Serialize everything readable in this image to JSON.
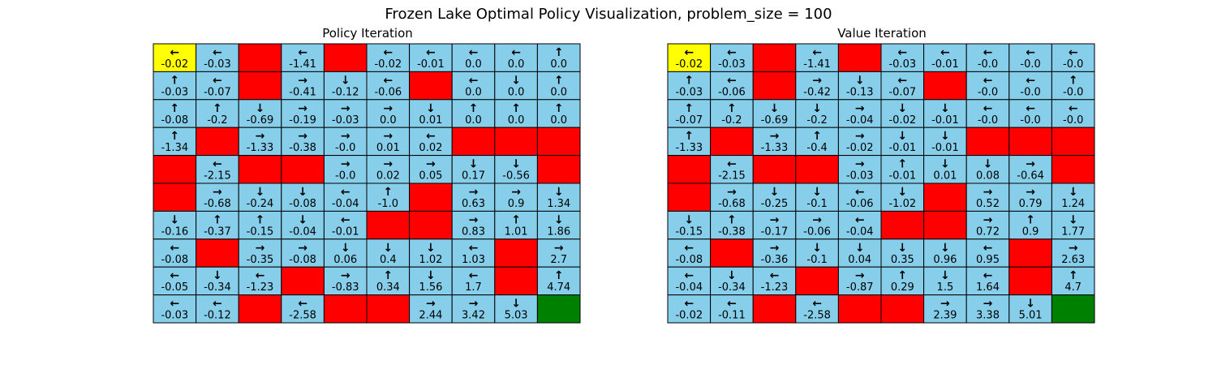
{
  "title": "Frozen Lake Optimal Policy Visualization, problem_size = 100",
  "colors": {
    "start": "#ffff00",
    "hole": "#ff0000",
    "goal": "#008000",
    "frozen": "#87ceeb",
    "border": "#000000"
  },
  "chart_data": [
    {
      "type": "heatmap",
      "title": "Policy Iteration",
      "rows": 10,
      "cols": 10,
      "cell_types": [
        [
          "S",
          "F",
          "H",
          "F",
          "H",
          "F",
          "F",
          "F",
          "F",
          "F"
        ],
        [
          "F",
          "F",
          "H",
          "F",
          "F",
          "F",
          "H",
          "F",
          "F",
          "F"
        ],
        [
          "F",
          "F",
          "F",
          "F",
          "F",
          "F",
          "F",
          "F",
          "F",
          "F"
        ],
        [
          "F",
          "H",
          "F",
          "F",
          "F",
          "F",
          "F",
          "H",
          "H",
          "H"
        ],
        [
          "H",
          "F",
          "H",
          "H",
          "F",
          "F",
          "F",
          "F",
          "F",
          "H"
        ],
        [
          "H",
          "F",
          "F",
          "F",
          "F",
          "F",
          "H",
          "F",
          "F",
          "F"
        ],
        [
          "F",
          "F",
          "F",
          "F",
          "F",
          "H",
          "H",
          "F",
          "F",
          "F"
        ],
        [
          "F",
          "H",
          "F",
          "F",
          "F",
          "F",
          "F",
          "F",
          "H",
          "F"
        ],
        [
          "F",
          "F",
          "F",
          "H",
          "F",
          "F",
          "F",
          "F",
          "H",
          "F"
        ],
        [
          "F",
          "F",
          "H",
          "F",
          "H",
          "H",
          "F",
          "F",
          "F",
          "G"
        ]
      ],
      "actions": [
        [
          "left",
          "left",
          "",
          "left",
          "",
          "left",
          "left",
          "left",
          "left",
          "up"
        ],
        [
          "up",
          "left",
          "",
          "right",
          "down",
          "left",
          "",
          "left",
          "down",
          "up"
        ],
        [
          "up",
          "up",
          "down",
          "right",
          "right",
          "right",
          "down",
          "up",
          "up",
          "up"
        ],
        [
          "up",
          "",
          "right",
          "right",
          "right",
          "right",
          "left",
          "",
          "",
          ""
        ],
        [
          "",
          "left",
          "",
          "",
          "right",
          "right",
          "right",
          "down",
          "down",
          ""
        ],
        [
          "",
          "right",
          "down",
          "down",
          "left",
          "up",
          "",
          "right",
          "right",
          "down"
        ],
        [
          "down",
          "up",
          "up",
          "down",
          "left",
          "",
          "",
          "right",
          "up",
          "down"
        ],
        [
          "left",
          "",
          "right",
          "right",
          "down",
          "down",
          "down",
          "left",
          "",
          "right"
        ],
        [
          "left",
          "down",
          "left",
          "",
          "right",
          "up",
          "down",
          "left",
          "",
          "up"
        ],
        [
          "left",
          "left",
          "",
          "left",
          "",
          "",
          "right",
          "right",
          "down",
          ""
        ]
      ],
      "values": [
        [
          "-0.02",
          "-0.03",
          "",
          "-1.41",
          "",
          "-0.02",
          "-0.01",
          "0.0",
          "0.0",
          "0.0"
        ],
        [
          "-0.03",
          "-0.07",
          "",
          "-0.41",
          "-0.12",
          "-0.06",
          "",
          "0.0",
          "0.0",
          "0.0"
        ],
        [
          "-0.08",
          "-0.2",
          "-0.69",
          "-0.19",
          "-0.03",
          "0.0",
          "0.01",
          "0.0",
          "0.0",
          "0.0"
        ],
        [
          "-1.34",
          "",
          "-1.33",
          "-0.38",
          "-0.0",
          "0.01",
          "0.02",
          "",
          "",
          ""
        ],
        [
          "",
          "-2.15",
          "",
          "",
          "-0.0",
          "0.02",
          "0.05",
          "0.17",
          "-0.56",
          ""
        ],
        [
          "",
          "-0.68",
          "-0.24",
          "-0.08",
          "-0.04",
          "-1.0",
          "",
          "0.63",
          "0.9",
          "1.34"
        ],
        [
          "-0.16",
          "-0.37",
          "-0.15",
          "-0.04",
          "-0.01",
          "",
          "",
          "0.83",
          "1.01",
          "1.86"
        ],
        [
          "-0.08",
          "",
          "-0.35",
          "-0.08",
          "0.06",
          "0.4",
          "1.02",
          "1.03",
          "",
          "2.7"
        ],
        [
          "-0.05",
          "-0.34",
          "-1.23",
          "",
          "-0.83",
          "0.34",
          "1.56",
          "1.7",
          "",
          "4.74"
        ],
        [
          "-0.03",
          "-0.12",
          "",
          "-2.58",
          "",
          "",
          "2.44",
          "3.42",
          "5.03",
          ""
        ]
      ]
    },
    {
      "type": "heatmap",
      "title": "Value Iteration",
      "rows": 10,
      "cols": 10,
      "cell_types": [
        [
          "S",
          "F",
          "H",
          "F",
          "H",
          "F",
          "F",
          "F",
          "F",
          "F"
        ],
        [
          "F",
          "F",
          "H",
          "F",
          "F",
          "F",
          "H",
          "F",
          "F",
          "F"
        ],
        [
          "F",
          "F",
          "F",
          "F",
          "F",
          "F",
          "F",
          "F",
          "F",
          "F"
        ],
        [
          "F",
          "H",
          "F",
          "F",
          "F",
          "F",
          "F",
          "H",
          "H",
          "H"
        ],
        [
          "H",
          "F",
          "H",
          "H",
          "F",
          "F",
          "F",
          "F",
          "F",
          "H"
        ],
        [
          "H",
          "F",
          "F",
          "F",
          "F",
          "F",
          "H",
          "F",
          "F",
          "F"
        ],
        [
          "F",
          "F",
          "F",
          "F",
          "F",
          "H",
          "H",
          "F",
          "F",
          "F"
        ],
        [
          "F",
          "H",
          "F",
          "F",
          "F",
          "F",
          "F",
          "F",
          "H",
          "F"
        ],
        [
          "F",
          "F",
          "F",
          "H",
          "F",
          "F",
          "F",
          "F",
          "H",
          "F"
        ],
        [
          "F",
          "F",
          "H",
          "F",
          "H",
          "H",
          "F",
          "F",
          "F",
          "G"
        ]
      ],
      "actions": [
        [
          "left",
          "left",
          "",
          "left",
          "",
          "left",
          "left",
          "left",
          "left",
          "left"
        ],
        [
          "up",
          "left",
          "",
          "right",
          "down",
          "left",
          "",
          "left",
          "left",
          "up"
        ],
        [
          "up",
          "up",
          "down",
          "down",
          "right",
          "down",
          "down",
          "left",
          "left",
          "left"
        ],
        [
          "up",
          "",
          "right",
          "up",
          "right",
          "down",
          "down",
          "",
          "",
          ""
        ],
        [
          "",
          "left",
          "",
          "",
          "right",
          "up",
          "down",
          "down",
          "right",
          ""
        ],
        [
          "",
          "right",
          "down",
          "down",
          "left",
          "down",
          "",
          "right",
          "right",
          "down"
        ],
        [
          "down",
          "up",
          "right",
          "right",
          "left",
          "",
          "",
          "right",
          "up",
          "down"
        ],
        [
          "left",
          "",
          "right",
          "down",
          "down",
          "down",
          "down",
          "left",
          "",
          "right"
        ],
        [
          "left",
          "down",
          "left",
          "",
          "right",
          "up",
          "down",
          "left",
          "",
          "up"
        ],
        [
          "left",
          "left",
          "",
          "left",
          "",
          "",
          "right",
          "right",
          "down",
          ""
        ]
      ],
      "values": [
        [
          "-0.02",
          "-0.03",
          "",
          "-1.41",
          "",
          "-0.03",
          "-0.01",
          "-0.0",
          "-0.0",
          "-0.0"
        ],
        [
          "-0.03",
          "-0.06",
          "",
          "-0.42",
          "-0.13",
          "-0.07",
          "",
          "-0.0",
          "-0.0",
          "-0.0"
        ],
        [
          "-0.07",
          "-0.2",
          "-0.69",
          "-0.2",
          "-0.04",
          "-0.02",
          "-0.01",
          "-0.0",
          "-0.0",
          "-0.0"
        ],
        [
          "-1.33",
          "",
          "-1.33",
          "-0.4",
          "-0.02",
          "-0.01",
          "-0.01",
          "",
          "",
          ""
        ],
        [
          "",
          "-2.15",
          "",
          "",
          "-0.03",
          "-0.01",
          "0.01",
          "0.08",
          "-0.64",
          ""
        ],
        [
          "",
          "-0.68",
          "-0.25",
          "-0.1",
          "-0.06",
          "-1.02",
          "",
          "0.52",
          "0.79",
          "1.24"
        ],
        [
          "-0.15",
          "-0.38",
          "-0.17",
          "-0.06",
          "-0.04",
          "",
          "",
          "0.72",
          "0.9",
          "1.77"
        ],
        [
          "-0.08",
          "",
          "-0.36",
          "-0.1",
          "0.04",
          "0.35",
          "0.96",
          "0.95",
          "",
          "2.63"
        ],
        [
          "-0.04",
          "-0.34",
          "-1.23",
          "",
          "-0.87",
          "0.29",
          "1.5",
          "1.64",
          "",
          "4.7"
        ],
        [
          "-0.02",
          "-0.11",
          "",
          "-2.58",
          "",
          "",
          "2.39",
          "3.38",
          "5.01",
          ""
        ]
      ]
    }
  ]
}
